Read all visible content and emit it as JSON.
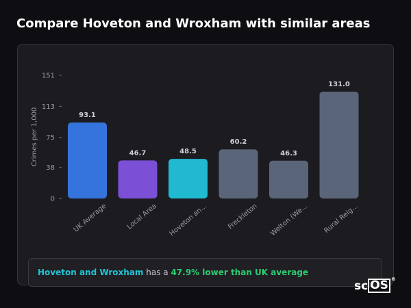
{
  "page": {
    "title": "Compare Hoveton and Wroxham with similar areas"
  },
  "chart_data": {
    "type": "bar",
    "title": "",
    "xlabel": "",
    "ylabel": "Crimes per 1,000",
    "ylim": [
      0,
      151
    ],
    "yticks": [
      0,
      38,
      75,
      113,
      151
    ],
    "grid": false,
    "categories": [
      "UK Average",
      "Local Area",
      "Hoveton an...",
      "Freckleton",
      "Welton (We...",
      "Rural Reig..."
    ],
    "values": [
      93.1,
      46.7,
      48.5,
      60.2,
      46.3,
      131.0
    ],
    "value_labels": [
      "93.1",
      "46.7",
      "48.5",
      "60.2",
      "46.3",
      "131.0"
    ],
    "colors": [
      "#3574dc",
      "#7b4fd6",
      "#20b9cf",
      "#5b6579",
      "#5b6579",
      "#5b6579"
    ]
  },
  "summary": {
    "area": "Hoveton and Wroxham",
    "middle": " has a ",
    "highlight": "47.9% lower than UK average"
  },
  "logo": {
    "prefix": "sc",
    "boxed": "OS",
    "mark": "®"
  }
}
